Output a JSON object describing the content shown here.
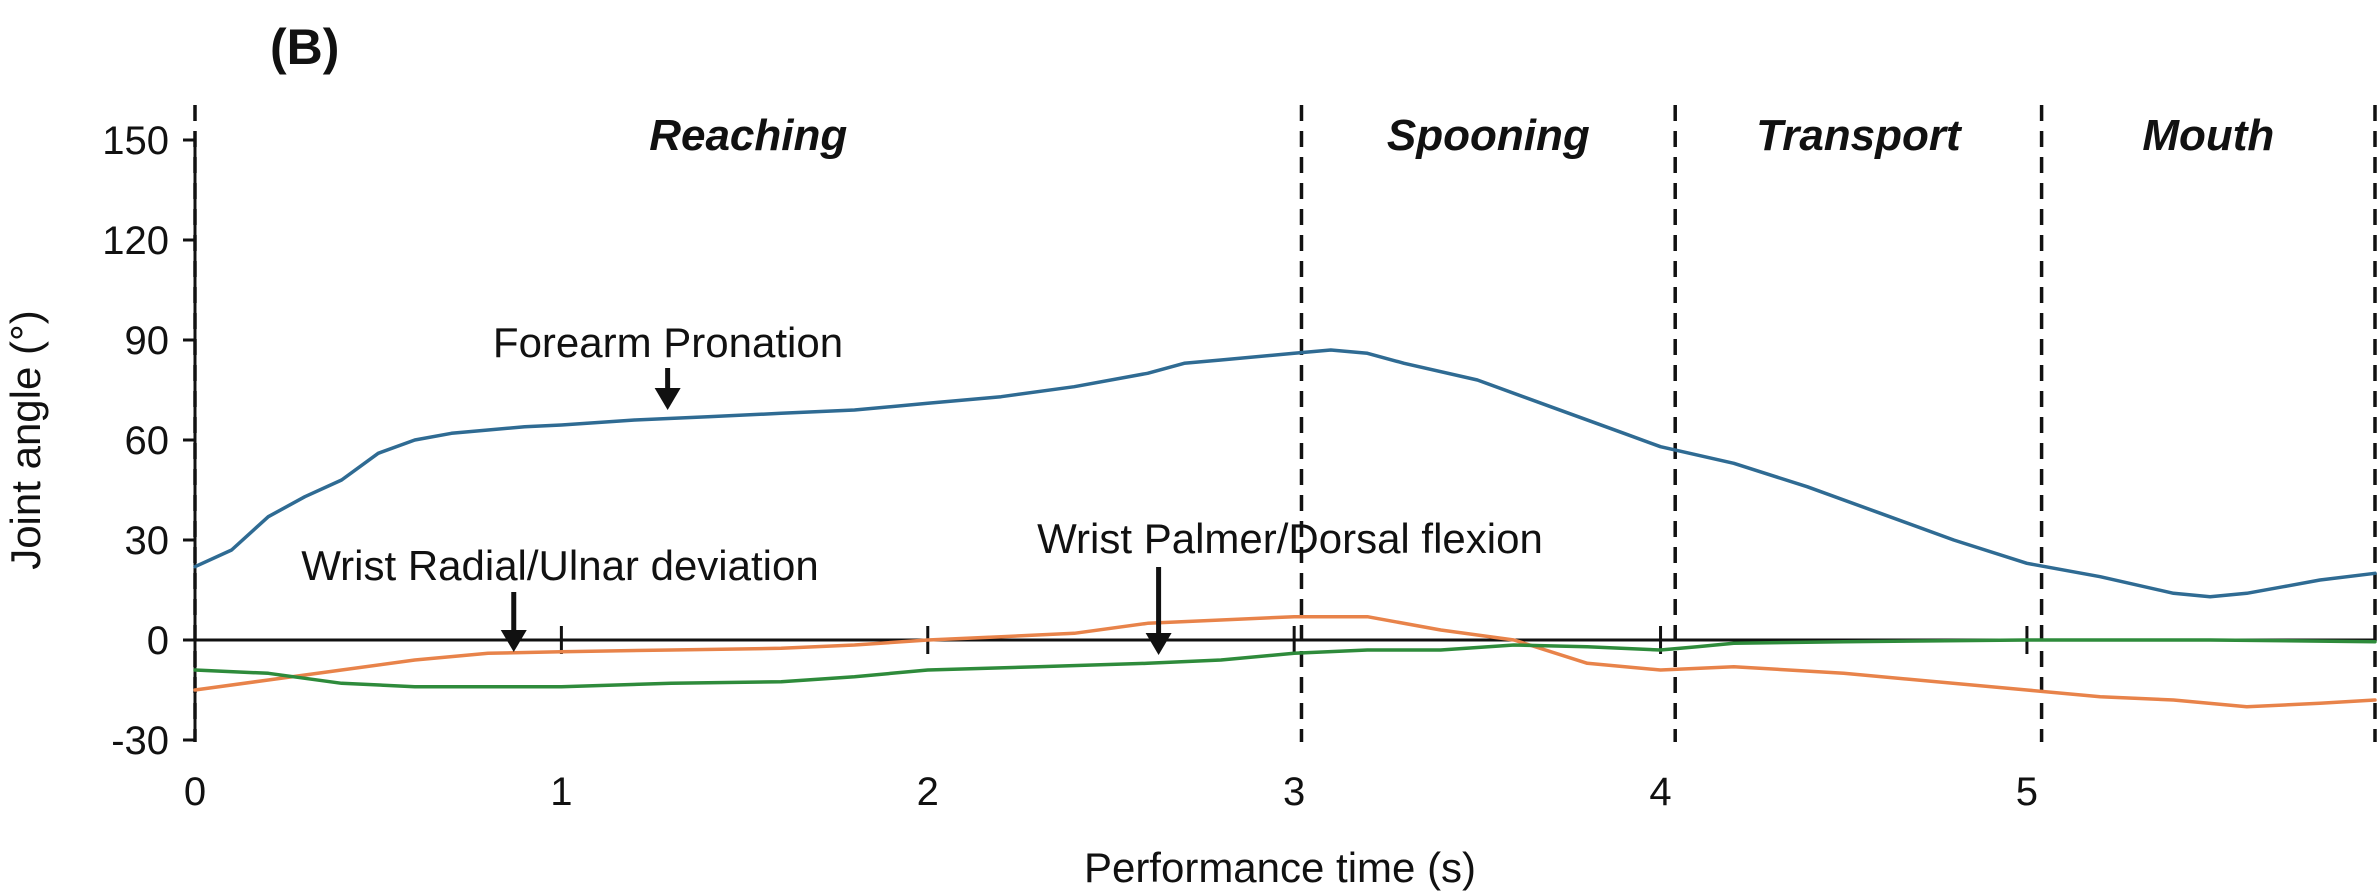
{
  "chart_data": {
    "type": "line",
    "panel_label": "(B)",
    "xlabel": "Performance time (s)",
    "ylabel": "Joint angle (°)",
    "xlim": [
      0,
      5.95
    ],
    "ylim": [
      -30,
      150
    ],
    "xticks": [
      0,
      1,
      2,
      3,
      4,
      5
    ],
    "xtick_labels": [
      "0",
      "1",
      "2",
      "3",
      "4",
      "5"
    ],
    "yticks": [
      150,
      120,
      90,
      60,
      30,
      0,
      -30
    ],
    "ytick_labels": [
      "150",
      "120",
      "90",
      "60",
      "30",
      "0",
      "-30"
    ],
    "grid": false,
    "legend": "none",
    "phases": [
      {
        "label": "Reaching",
        "start": 0,
        "end": 3.02
      },
      {
        "label": "Spooning",
        "start": 3.02,
        "end": 4.04
      },
      {
        "label": "Transport",
        "start": 4.04,
        "end": 5.04
      },
      {
        "label": "Mouth",
        "start": 5.04,
        "end": 5.95
      }
    ],
    "phase_boundaries": [
      0,
      3.02,
      4.04,
      5.04,
      5.95
    ],
    "series": [
      {
        "name": "Forearm Pronation",
        "color": "#2f6b93",
        "x": [
          0,
          0.1,
          0.2,
          0.3,
          0.4,
          0.5,
          0.6,
          0.7,
          0.8,
          0.9,
          1.0,
          1.2,
          1.4,
          1.6,
          1.8,
          2.0,
          2.2,
          2.4,
          2.6,
          2.7,
          2.8,
          3.0,
          3.1,
          3.2,
          3.3,
          3.5,
          3.7,
          3.9,
          4.0,
          4.2,
          4.4,
          4.6,
          4.8,
          5.0,
          5.2,
          5.4,
          5.5,
          5.6,
          5.7,
          5.8,
          5.95
        ],
        "y": [
          22,
          27,
          37,
          43,
          48,
          56,
          60,
          62,
          63,
          64,
          64.5,
          66,
          67,
          68,
          69,
          71,
          73,
          76,
          80,
          83,
          84,
          86,
          87,
          86,
          83,
          78,
          70,
          62,
          58,
          53,
          46,
          38,
          30,
          23,
          19,
          14,
          13,
          14,
          16,
          18,
          20
        ]
      },
      {
        "name": "Wrist Palmer/Dorsal flexion",
        "color": "#e8834a",
        "x": [
          0,
          0.2,
          0.4,
          0.6,
          0.8,
          1.0,
          1.3,
          1.6,
          1.8,
          2.0,
          2.2,
          2.4,
          2.6,
          2.8,
          3.0,
          3.2,
          3.4,
          3.6,
          3.8,
          4.0,
          4.2,
          4.5,
          5.0,
          5.2,
          5.4,
          5.6,
          5.8,
          5.95
        ],
        "y": [
          -15,
          -12,
          -9,
          -6,
          -4,
          -3.5,
          -3,
          -2.5,
          -1.5,
          0,
          1,
          2,
          5,
          6,
          7,
          7,
          3,
          0,
          -7,
          -9,
          -8,
          -10,
          -15,
          -17,
          -18,
          -20,
          -19,
          -18
        ]
      },
      {
        "name": "Wrist Radial/Ulnar deviation",
        "color": "#2e8b3b",
        "x": [
          0,
          0.2,
          0.4,
          0.6,
          0.8,
          1.0,
          1.3,
          1.6,
          1.8,
          2.0,
          2.3,
          2.6,
          2.8,
          3.0,
          3.2,
          3.4,
          3.6,
          3.8,
          4.0,
          4.1,
          4.2,
          4.5,
          5.0,
          5.5,
          5.95
        ],
        "y": [
          -9,
          -10,
          -13,
          -14,
          -14,
          -14,
          -13,
          -12.5,
          -11,
          -9,
          -8,
          -7,
          -6,
          -4,
          -3,
          -3,
          -1.5,
          -2,
          -3,
          -2,
          -1,
          -0.5,
          0,
          0,
          -0.5
        ]
      }
    ],
    "annotations": [
      {
        "text": "Forearm Pronation",
        "arrow_at": [
          1.29,
          66
        ]
      },
      {
        "text": "Wrist Radial/Ulnar deviation",
        "arrow_at": [
          0.87,
          -4
        ]
      },
      {
        "text": "Wrist Palmer/Dorsal flexion",
        "arrow_at": [
          2.63,
          -4
        ]
      }
    ]
  }
}
